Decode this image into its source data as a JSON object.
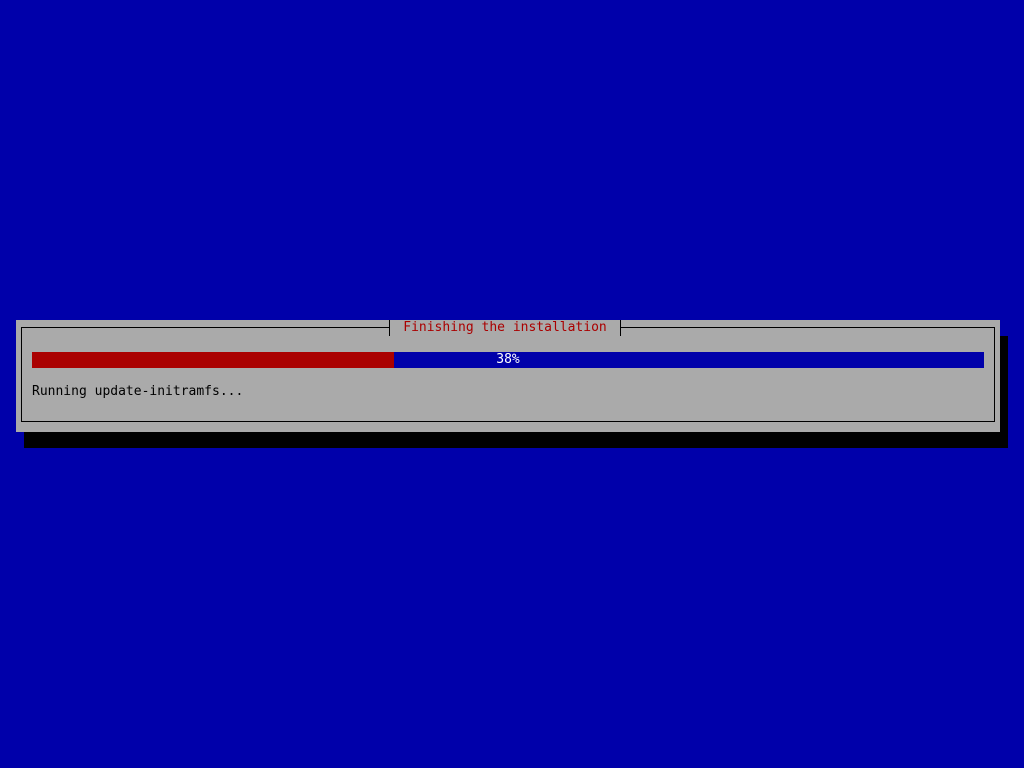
{
  "dialog": {
    "title": "Finishing the installation",
    "progress": {
      "percent": 38,
      "label": "38%"
    },
    "status_text": "Running update-initramfs...",
    "colors": {
      "background": "#0000aa",
      "dialog": "#aaaaaa",
      "title": "#aa0000",
      "bar_fill": "#aa0000",
      "bar_empty": "#0000aa"
    }
  }
}
